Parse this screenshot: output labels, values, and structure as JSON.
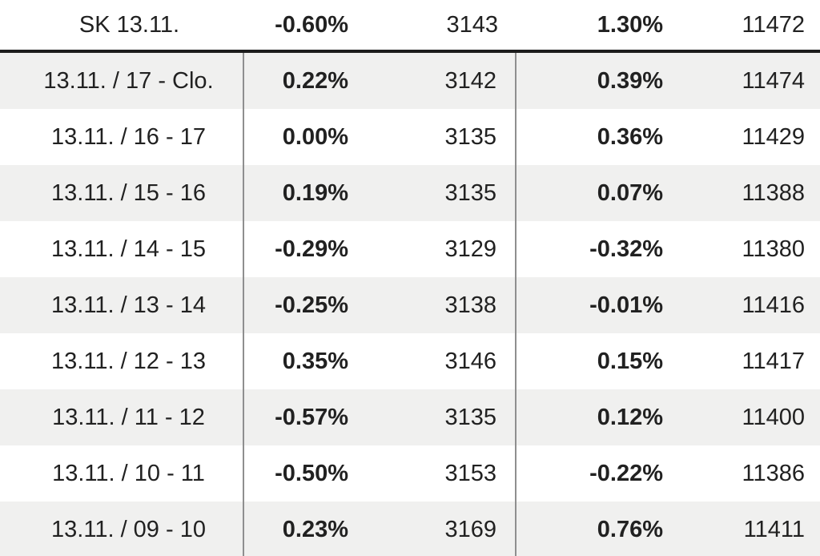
{
  "table": {
    "header": {
      "label": "SK 13.11.",
      "pct1": "-0.60%",
      "val1": "3143",
      "pct2": "1.30%",
      "val2": "11472"
    },
    "rows": [
      {
        "label": "13.11. / 17 - Clo.",
        "pct1": "0.22%",
        "val1": "3142",
        "pct2": "0.39%",
        "val2": "11474"
      },
      {
        "label": "13.11. / 16 - 17",
        "pct1": "0.00%",
        "val1": "3135",
        "pct2": "0.36%",
        "val2": "11429"
      },
      {
        "label": "13.11. / 15 - 16",
        "pct1": "0.19%",
        "val1": "3135",
        "pct2": "0.07%",
        "val2": "11388"
      },
      {
        "label": "13.11. / 14 - 15",
        "pct1": "-0.29%",
        "val1": "3129",
        "pct2": "-0.32%",
        "val2": "11380"
      },
      {
        "label": "13.11. / 13 - 14",
        "pct1": "-0.25%",
        "val1": "3138",
        "pct2": "-0.01%",
        "val2": "11416"
      },
      {
        "label": "13.11. / 12 - 13",
        "pct1": "0.35%",
        "val1": "3146",
        "pct2": "0.15%",
        "val2": "11417"
      },
      {
        "label": "13.11. / 11 - 12",
        "pct1": "-0.57%",
        "val1": "3135",
        "pct2": "0.12%",
        "val2": "11400"
      },
      {
        "label": "13.11. / 10 - 11",
        "pct1": "-0.50%",
        "val1": "3153",
        "pct2": "-0.22%",
        "val2": "11386"
      },
      {
        "label": "13.11. / 09 - 10",
        "pct1": "0.23%",
        "val1": "3169",
        "pct2": "0.76%",
        "val2": "11411"
      }
    ],
    "colors": {
      "row_alt_background": "#f0f0ef",
      "header_divider": "#1c1c1c",
      "column_divider": "#8f8f8f",
      "text": "#212121"
    }
  }
}
